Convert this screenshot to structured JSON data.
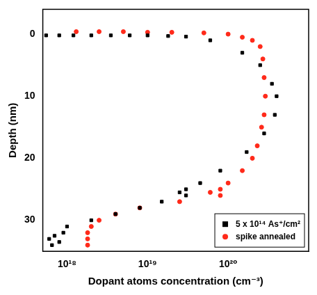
{
  "chart_data": {
    "type": "scatter",
    "x_label": "Dopant atoms concentration (cm⁻³)",
    "y_label": "Depth (nm)",
    "log": "x",
    "grid": false,
    "legend": "bottom-right",
    "xlim": [
      5e+17,
      1e+21
    ],
    "xticks": [
      {
        "value": 1e+18,
        "label": "10¹⁸"
      },
      {
        "value": 1e+19,
        "label": "10¹⁹"
      },
      {
        "value": 1e+20,
        "label": "10²⁰"
      }
    ],
    "ylim": [
      35,
      -4
    ],
    "yticks": [
      0,
      10,
      20,
      30
    ],
    "series": [
      {
        "name": "5 x 10¹⁴ As⁺/cm²",
        "color": "#000000",
        "marker": "square",
        "x": [
          5.5e+17,
          8e+17,
          1.2e+18,
          2e+18,
          3.5e+18,
          6e+18,
          1e+19,
          1.8e+19,
          3e+19,
          6e+19,
          1.5e+20,
          2.5e+20,
          3.5e+20,
          4e+20,
          3.8e+20,
          2.8e+20,
          1.7e+20,
          8e+19,
          4.5e+19,
          3e+19,
          2.5e+19,
          3e+19,
          1.5e+19,
          8e+18,
          4e+18,
          2e+18,
          1e+18,
          9e+17,
          7e+17,
          6e+17,
          8e+17,
          6.5e+17
        ],
        "y": [
          0.2,
          0.2,
          0.2,
          0.2,
          0.2,
          0.2,
          0.2,
          0.3,
          0.4,
          1,
          3,
          5,
          8,
          10,
          13,
          16,
          19,
          22,
          24,
          25,
          25.5,
          26,
          27,
          28,
          29,
          30,
          31,
          32,
          32.5,
          33,
          33.5,
          34
        ]
      },
      {
        "name": "spike annealed",
        "color": "#ff2a1a",
        "marker": "circle",
        "x": [
          1.3e+18,
          2.5e+18,
          5e+18,
          1e+19,
          2e+19,
          5e+19,
          1e+20,
          1.5e+20,
          2e+20,
          2.5e+20,
          2.7e+20,
          2.8e+20,
          2.9e+20,
          2.8e+20,
          2.6e+20,
          2.3e+20,
          2e+20,
          1.5e+20,
          1e+20,
          8e+19,
          6e+19,
          8e+19,
          2.5e+19,
          8e+18,
          4e+18,
          2.5e+18,
          2e+18,
          1.8e+18,
          1.8e+18,
          1.8e+18
        ],
        "y": [
          -0.4,
          -0.4,
          -0.4,
          -0.3,
          -0.3,
          -0.2,
          0,
          0.5,
          1,
          2,
          4,
          7,
          10,
          13,
          15,
          18,
          20,
          22,
          24,
          25,
          25.5,
          26,
          27,
          28,
          29,
          30,
          31,
          32,
          33,
          34
        ]
      }
    ]
  }
}
